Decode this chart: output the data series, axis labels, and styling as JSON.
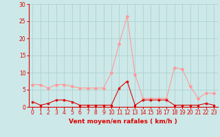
{
  "x": [
    0,
    1,
    2,
    3,
    4,
    5,
    6,
    7,
    8,
    9,
    10,
    11,
    12,
    13,
    14,
    15,
    16,
    17,
    18,
    19,
    20,
    21,
    22,
    23
  ],
  "wind_avg": [
    1.5,
    0.5,
    1.0,
    2.0,
    2.0,
    1.5,
    0.5,
    0.5,
    0.5,
    0.5,
    0.5,
    5.5,
    7.5,
    0.5,
    2.0,
    2.0,
    2.0,
    2.0,
    0.5,
    0.5,
    0.5,
    0.5,
    1.0,
    0.5
  ],
  "wind_gust": [
    6.5,
    6.5,
    5.5,
    6.5,
    6.5,
    6.0,
    5.5,
    5.5,
    5.5,
    5.5,
    10.0,
    18.5,
    26.5,
    9.5,
    2.5,
    2.5,
    2.5,
    2.5,
    11.5,
    11.0,
    6.0,
    2.5,
    4.0,
    4.0
  ],
  "line_color_avg": "#dd0000",
  "line_color_gust": "#ff9999",
  "bg_color": "#cce8e8",
  "grid_color": "#aacccc",
  "axis_color": "#dd0000",
  "xlabel": "Vent moyen/en rafales ( km/h )",
  "ylim": [
    0,
    30
  ],
  "yticks": [
    0,
    5,
    10,
    15,
    20,
    25,
    30
  ],
  "xlim": [
    -0.5,
    23.5
  ],
  "xticks": [
    0,
    1,
    2,
    3,
    4,
    5,
    6,
    7,
    8,
    9,
    10,
    11,
    12,
    13,
    14,
    15,
    16,
    17,
    18,
    19,
    20,
    21,
    22,
    23
  ]
}
